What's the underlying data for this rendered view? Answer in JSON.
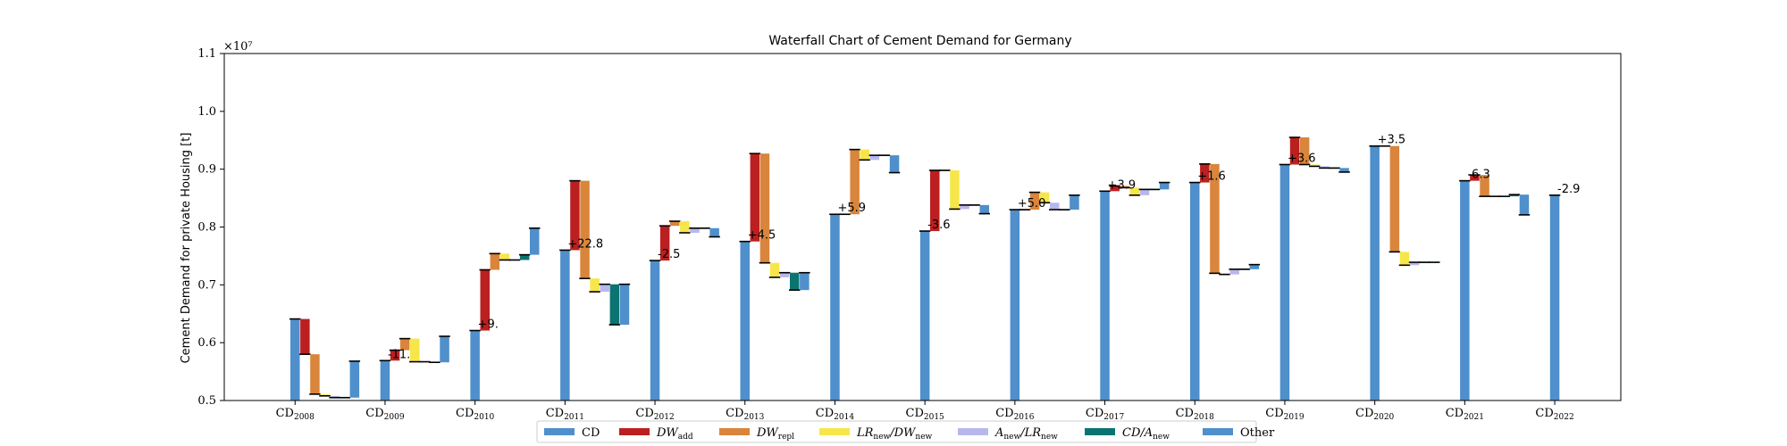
{
  "chart_data": {
    "type": "bar",
    "title": "Waterfall Chart of Cement Demand for Germany",
    "ylabel": "Cement Demand for private Housing [t]",
    "y_multiplier_label": "×10⁷",
    "ylim": [
      0.5,
      1.1
    ],
    "yticks": [
      "0.5",
      "0.6",
      "0.7",
      "0.8",
      "0.9",
      "1.0",
      "1.1"
    ],
    "grid": false,
    "legend_position": "bottom-center",
    "colors": {
      "CD": "#4F8FCB",
      "DW_add": "#BC1F1F",
      "DW_repl": "#D9853B",
      "LR": "#F7E64A",
      "A": "#B7B7EE",
      "CDA": "#0B7471",
      "Other": "#4F8FCB"
    },
    "legend": [
      {
        "key": "CD",
        "base": "CD",
        "sub": ""
      },
      {
        "key": "DW_add",
        "base": "DW",
        "sub": "add"
      },
      {
        "key": "DW_repl",
        "base": "DW",
        "sub": "repl"
      },
      {
        "key": "LR",
        "base": "LR",
        "sub": "new",
        "base2": "/DW",
        "sub2": "new"
      },
      {
        "key": "A",
        "base": "A",
        "sub": "new",
        "base2": "/LR",
        "sub2": "new"
      },
      {
        "key": "CDA",
        "base": "CD/A",
        "sub": "new"
      },
      {
        "key": "Other",
        "base": "Other",
        "sub": ""
      }
    ],
    "years": [
      {
        "label": "CD",
        "year": "2008",
        "total": 0.641,
        "annotation": "",
        "components": [
          -0.061,
          -0.069,
          -0.003,
          -0.003,
          0.0,
          0.063
        ]
      },
      {
        "label": "CD",
        "year": "2009",
        "total": 0.569,
        "annotation": "-11.",
        "components": [
          0.018,
          0.02,
          -0.04,
          0.0,
          -0.001,
          0.045
        ]
      },
      {
        "label": "CD",
        "year": "2010",
        "total": 0.621,
        "annotation": "+9.",
        "components": [
          0.105,
          0.028,
          -0.011,
          0.0,
          0.009,
          0.046
        ]
      },
      {
        "label": "CD",
        "year": "2011",
        "total": 0.76,
        "annotation": "+22.8",
        "components": [
          0.12,
          -0.169,
          -0.023,
          0.013,
          -0.07,
          0.07
        ]
      },
      {
        "label": "CD",
        "year": "2012",
        "total": 0.742,
        "annotation": "-2.5",
        "components": [
          0.06,
          0.008,
          -0.02,
          0.008,
          0.0,
          -0.015
        ]
      },
      {
        "label": "CD",
        "year": "2013",
        "total": 0.775,
        "annotation": "+4.5",
        "components": [
          0.152,
          -0.189,
          -0.025,
          0.008,
          -0.03,
          0.03
        ]
      },
      {
        "label": "CD",
        "year": "2014",
        "total": 0.822,
        "annotation": "+5.9",
        "components": [
          0.0,
          0.112,
          -0.018,
          0.008,
          0.0,
          -0.03
        ]
      },
      {
        "label": "CD",
        "year": "2015",
        "total": 0.793,
        "annotation": "-3.6",
        "components": [
          0.105,
          0.0,
          -0.067,
          0.007,
          0.0,
          -0.015
        ]
      },
      {
        "label": "CD",
        "year": "2016",
        "total": 0.83,
        "annotation": "+5.0",
        "components": [
          0.0,
          0.03,
          -0.018,
          -0.012,
          0.0,
          0.025
        ]
      },
      {
        "label": "CD",
        "year": "2017",
        "total": 0.862,
        "annotation": "+3.9",
        "components": [
          0.009,
          -0.003,
          -0.013,
          0.01,
          0.0,
          0.012
        ]
      },
      {
        "label": "CD",
        "year": "2018",
        "total": 0.877,
        "annotation": "+1.6",
        "components": [
          0.032,
          -0.189,
          -0.002,
          0.009,
          0.0,
          0.008
        ]
      },
      {
        "label": "CD",
        "year": "2019",
        "total": 0.908,
        "annotation": "+3.6",
        "components": [
          0.047,
          -0.047,
          -0.003,
          -0.003,
          0.0,
          -0.007
        ]
      },
      {
        "label": "CD",
        "year": "2020",
        "total": 0.94,
        "annotation": "+3.5",
        "components": [
          0.0,
          -0.183,
          -0.023,
          0.005,
          0.0,
          0.0
        ]
      },
      {
        "label": "CD",
        "year": "2021",
        "total": 0.88,
        "annotation": "-6.3",
        "components": [
          0.01,
          -0.037,
          0.0,
          0.0,
          0.003,
          -0.035
        ]
      },
      {
        "label": "CD",
        "year": "2022",
        "total": 0.855,
        "annotation": "-2.9",
        "components": []
      }
    ],
    "component_keys": [
      "DW_add",
      "DW_repl",
      "LR",
      "A",
      "CDA",
      "Other"
    ]
  }
}
